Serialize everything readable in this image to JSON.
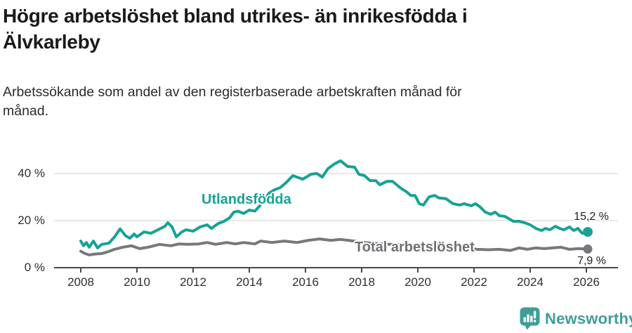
{
  "header": {
    "title_lines": [
      "Högre arbetslöshet bland utrikes- än inrikesfödda i",
      "Älvkarleby"
    ],
    "subtitle_lines": [
      "Arbetssökande som andel av den registerbaserade arbetskraften månad för",
      "månad."
    ]
  },
  "chart_data": {
    "type": "line",
    "title": "Högre arbetslöshet bland utrikes- än inrikesfödda i Älvkarleby",
    "subtitle": "Arbetssökande som andel av den registerbaserade arbetskraften månad för månad.",
    "xlabel": "",
    "ylabel": "",
    "xlim": [
      2007.5,
      2026.9
    ],
    "ylim": [
      0,
      48
    ],
    "grid": "horizontal",
    "grid_values": [
      20,
      40
    ],
    "grid_color": "#d9d9d9",
    "axis_color": "#4a4a4c",
    "y_ticks": [
      {
        "value": 40,
        "label": "40 %"
      },
      {
        "value": 20,
        "label": "20 %"
      },
      {
        "value": 0,
        "label": "0 %"
      }
    ],
    "x_ticks": [
      {
        "value": 2008,
        "label": "2008"
      },
      {
        "value": 2010,
        "label": "2010"
      },
      {
        "value": 2012,
        "label": "2012"
      },
      {
        "value": 2014,
        "label": "2014"
      },
      {
        "value": 2016,
        "label": "2016"
      },
      {
        "value": 2018,
        "label": "2018"
      },
      {
        "value": 2020,
        "label": "2020"
      },
      {
        "value": 2022,
        "label": "2022"
      },
      {
        "value": 2024,
        "label": "2024"
      },
      {
        "value": 2026,
        "label": "2026"
      }
    ],
    "series": [
      {
        "name": "Utlandsfödda",
        "color": "#17a294",
        "end_label": "15,2 %",
        "end_value": 15.2,
        "x": [
          2008.0,
          2008.1,
          2008.2,
          2008.3,
          2008.45,
          2008.6,
          2008.75,
          2009.0,
          2009.2,
          2009.4,
          2009.6,
          2009.75,
          2009.9,
          2010.0,
          2010.25,
          2010.5,
          2010.75,
          2011.0,
          2011.1,
          2011.25,
          2011.4,
          2011.6,
          2011.75,
          2012.0,
          2012.25,
          2012.5,
          2012.65,
          2012.9,
          2013.1,
          2013.3,
          2013.45,
          2013.6,
          2013.8,
          2014.0,
          2014.2,
          2014.5,
          2014.7,
          2014.9,
          2015.1,
          2015.3,
          2015.55,
          2015.9,
          2016.2,
          2016.4,
          2016.6,
          2016.8,
          2017.05,
          2017.25,
          2017.5,
          2017.75,
          2017.9,
          2018.1,
          2018.3,
          2018.5,
          2018.65,
          2018.9,
          2019.1,
          2019.4,
          2019.6,
          2019.75,
          2019.9,
          2020.05,
          2020.2,
          2020.4,
          2020.6,
          2020.75,
          2021.0,
          2021.25,
          2021.5,
          2021.65,
          2021.9,
          2022.05,
          2022.2,
          2022.4,
          2022.6,
          2022.75,
          2022.9,
          2023.1,
          2023.4,
          2023.6,
          2023.8,
          2024.0,
          2024.2,
          2024.4,
          2024.55,
          2024.7,
          2024.9,
          2025.05,
          2025.2,
          2025.4,
          2025.55,
          2025.7,
          2025.85,
          2026.05
        ],
        "values": [
          11.3,
          9.3,
          10.7,
          8.7,
          11.3,
          8.4,
          9.9,
          10.4,
          13.0,
          16.5,
          13.5,
          12.5,
          14.3,
          13.1,
          15.2,
          14.6,
          16.1,
          17.6,
          19.1,
          17.3,
          13.1,
          15.2,
          16.1,
          15.5,
          17.3,
          18.2,
          16.7,
          18.8,
          19.7,
          21.2,
          23.6,
          24.0,
          23.0,
          24.5,
          24.0,
          28.0,
          31.6,
          33.1,
          34.0,
          36.0,
          39.1,
          37.6,
          39.7,
          40.0,
          38.5,
          42.1,
          44.2,
          45.4,
          43.0,
          42.7,
          39.7,
          39.1,
          37.0,
          37.0,
          35.2,
          36.7,
          36.7,
          33.7,
          32.2,
          30.7,
          30.7,
          27.2,
          26.6,
          30.1,
          30.7,
          29.6,
          29.3,
          27.2,
          26.6,
          27.2,
          26.3,
          27.2,
          26.0,
          23.6,
          22.7,
          23.6,
          22.1,
          21.8,
          19.7,
          19.7,
          19.1,
          18.2,
          16.7,
          15.8,
          16.7,
          16.1,
          17.6,
          16.7,
          16.1,
          17.3,
          15.8,
          16.7,
          14.6,
          15.2
        ]
      },
      {
        "name": "Total arbetslöshet",
        "color": "#77777c",
        "end_label": "7,9 %",
        "end_value": 7.9,
        "x": [
          2008.0,
          2008.15,
          2008.3,
          2008.5,
          2008.75,
          2009.0,
          2009.2,
          2009.5,
          2009.8,
          2010.1,
          2010.4,
          2010.8,
          2011.2,
          2011.5,
          2011.8,
          2012.2,
          2012.5,
          2012.8,
          2013.2,
          2013.5,
          2013.8,
          2014.2,
          2014.4,
          2014.8,
          2015.25,
          2015.7,
          2016.1,
          2016.5,
          2016.9,
          2017.25,
          2017.6,
          2018.0,
          2018.5,
          2019.0,
          2019.5,
          2020.0,
          2020.3,
          2020.6,
          2021.0,
          2021.5,
          2022.1,
          2022.5,
          2022.9,
          2023.3,
          2023.6,
          2023.9,
          2024.2,
          2024.5,
          2024.8,
          2025.1,
          2025.4,
          2025.7,
          2026.05
        ],
        "values": [
          7.0,
          6.0,
          5.4,
          5.8,
          6.0,
          6.9,
          7.8,
          8.7,
          9.3,
          8.1,
          8.7,
          9.9,
          9.3,
          10.1,
          9.9,
          10.1,
          10.7,
          9.9,
          10.7,
          10.1,
          10.7,
          10.1,
          11.3,
          10.7,
          11.3,
          10.7,
          11.6,
          12.2,
          11.6,
          12.0,
          11.5,
          10.8,
          10.3,
          9.9,
          9.6,
          9.3,
          9.6,
          9.9,
          9.4,
          8.8,
          7.8,
          7.6,
          7.8,
          7.3,
          8.4,
          7.8,
          8.4,
          8.1,
          8.4,
          8.7,
          7.8,
          8.1,
          7.9
        ]
      }
    ],
    "legend_position": "inline-labels"
  },
  "footer": {
    "brand": "Newsworthy",
    "logo_color": "#3f9e97"
  }
}
